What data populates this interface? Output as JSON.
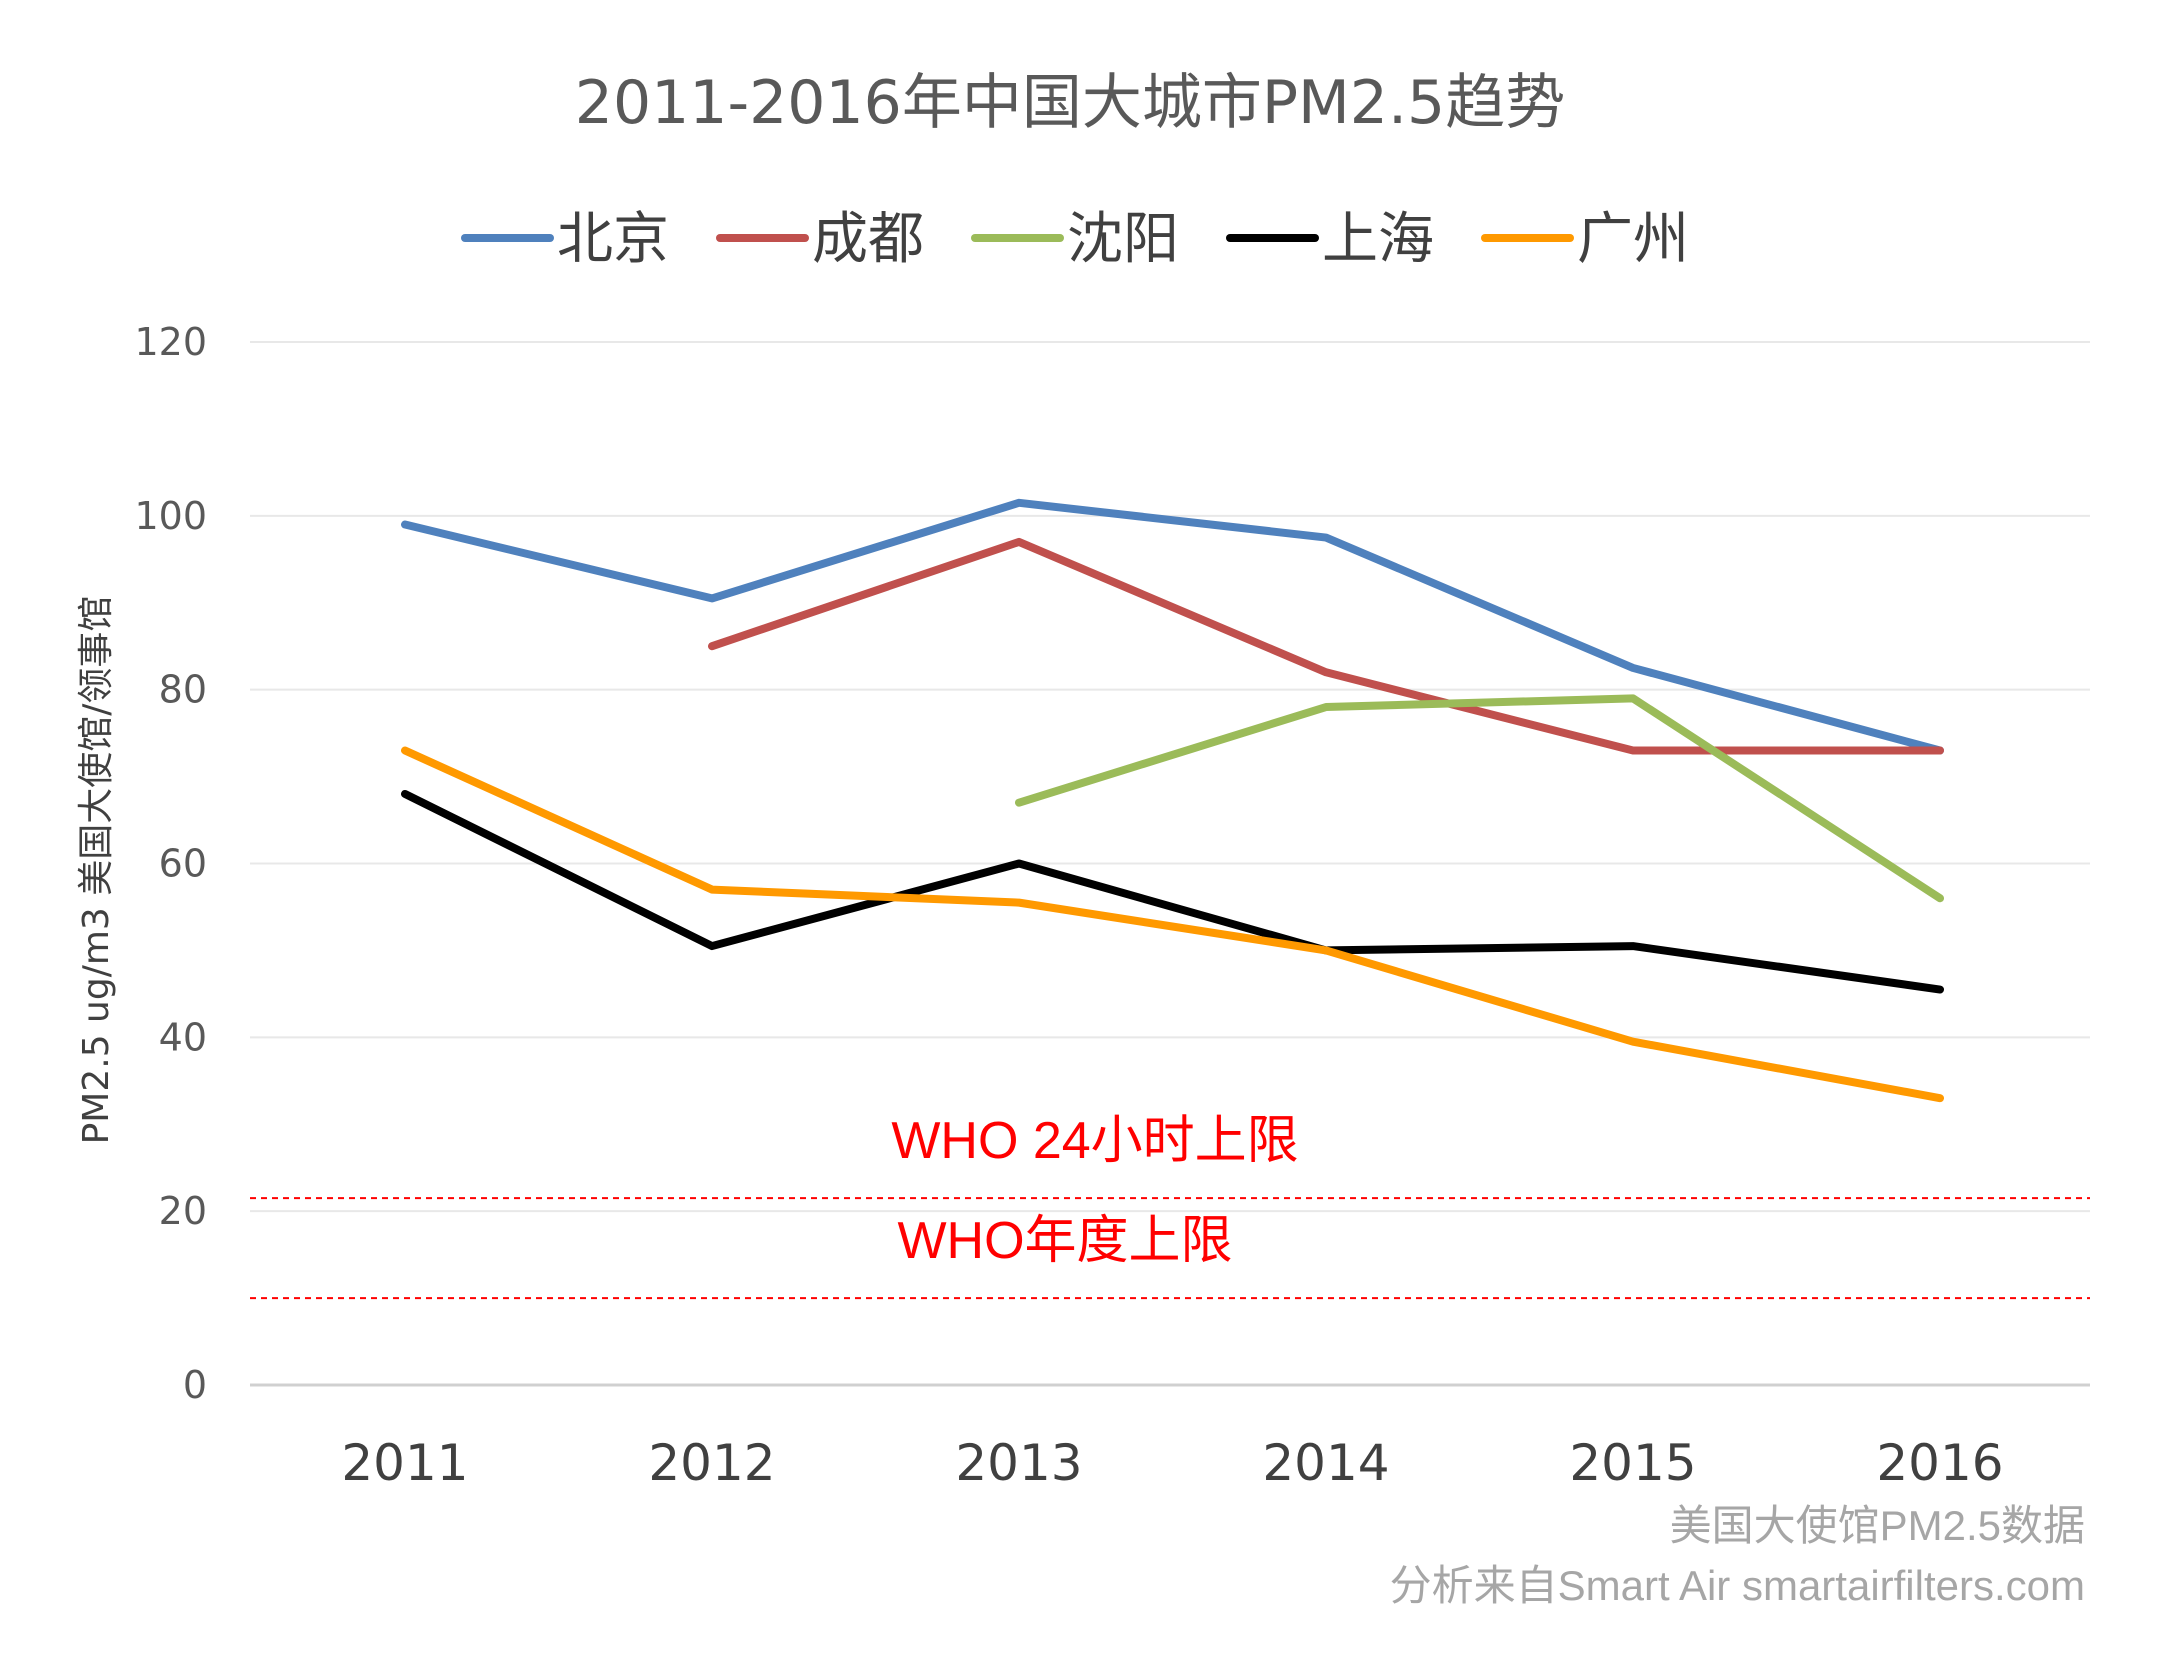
{
  "chart_data": {
    "type": "line",
    "title": "2011-2016年中国大城市PM2.5趋势",
    "ylabel": "PM2.5 ug/m3 美国大使馆/领事馆",
    "xlabel": "",
    "categories": [
      "2011",
      "2012",
      "2013",
      "2014",
      "2015",
      "2016"
    ],
    "ylim": [
      0,
      120
    ],
    "yticks": [
      0,
      20,
      40,
      60,
      80,
      100,
      120
    ],
    "grid": true,
    "legend_position": "top",
    "series": [
      {
        "name": "北京",
        "color": "#4f81bd",
        "values": [
          99,
          90.5,
          101.5,
          97.5,
          82.5,
          73
        ]
      },
      {
        "name": "成都",
        "color": "#c0504d",
        "values": [
          null,
          85,
          97,
          82,
          73,
          73
        ]
      },
      {
        "name": "沈阳",
        "color": "#9bbb59",
        "values": [
          null,
          null,
          67,
          78,
          79,
          56
        ]
      },
      {
        "name": "上海",
        "color": "#000000",
        "values": [
          68,
          50.5,
          60,
          50,
          50.5,
          45.5
        ]
      },
      {
        "name": "广州",
        "color": "#ff9900",
        "values": [
          73,
          57,
          55.5,
          50,
          39.5,
          33
        ]
      }
    ],
    "reference_lines": [
      {
        "label": "WHO 24小时上限",
        "value": 21.5,
        "color": "#ff0000"
      },
      {
        "label": "WHO年度上限",
        "value": 10,
        "color": "#ff0000"
      }
    ],
    "source_lines": [
      "美国大使馆PM2.5数据",
      "分析来自Smart Air smartairfilters.com"
    ]
  }
}
